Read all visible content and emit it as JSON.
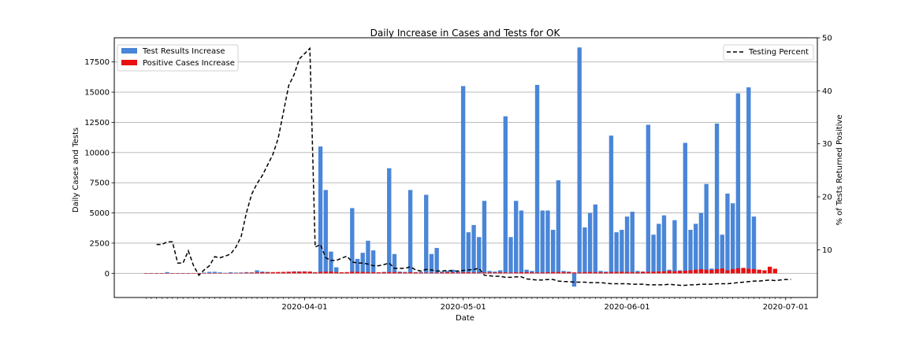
{
  "chart_data": {
    "type": "bar",
    "title": "Daily Increase in Cases and Tests for OK",
    "xlabel": "Date",
    "ylabel": "Daily Cases and Tests",
    "y2label": "% of Tests Returned Positive",
    "x_dates": [
      "2020-03-02",
      "2020-03-03",
      "2020-03-04",
      "2020-03-05",
      "2020-03-06",
      "2020-03-07",
      "2020-03-08",
      "2020-03-09",
      "2020-03-10",
      "2020-03-11",
      "2020-03-12",
      "2020-03-13",
      "2020-03-14",
      "2020-03-15",
      "2020-03-16",
      "2020-03-17",
      "2020-03-18",
      "2020-03-19",
      "2020-03-20",
      "2020-03-21",
      "2020-03-22",
      "2020-03-23",
      "2020-03-24",
      "2020-03-25",
      "2020-03-26",
      "2020-03-27",
      "2020-03-28",
      "2020-03-29",
      "2020-03-30",
      "2020-03-31",
      "2020-04-01",
      "2020-04-02",
      "2020-04-03",
      "2020-04-04",
      "2020-04-05",
      "2020-04-06",
      "2020-04-07",
      "2020-04-08",
      "2020-04-09",
      "2020-04-10",
      "2020-04-11",
      "2020-04-12",
      "2020-04-13",
      "2020-04-14",
      "2020-04-15",
      "2020-04-16",
      "2020-04-17",
      "2020-04-18",
      "2020-04-19",
      "2020-04-20",
      "2020-04-21",
      "2020-04-22",
      "2020-04-23",
      "2020-04-24",
      "2020-04-25",
      "2020-04-26",
      "2020-04-27",
      "2020-04-28",
      "2020-04-29",
      "2020-04-30",
      "2020-05-01",
      "2020-05-02",
      "2020-05-03",
      "2020-05-04",
      "2020-05-05",
      "2020-05-06",
      "2020-05-07",
      "2020-05-08",
      "2020-05-09",
      "2020-05-10",
      "2020-05-11",
      "2020-05-12",
      "2020-05-13",
      "2020-05-14",
      "2020-05-15",
      "2020-05-16",
      "2020-05-17",
      "2020-05-18",
      "2020-05-19",
      "2020-05-20",
      "2020-05-21",
      "2020-05-22",
      "2020-05-23",
      "2020-05-24",
      "2020-05-25",
      "2020-05-26",
      "2020-05-27",
      "2020-05-28",
      "2020-05-29",
      "2020-05-30",
      "2020-05-31",
      "2020-06-01",
      "2020-06-02",
      "2020-06-03",
      "2020-06-04",
      "2020-06-05",
      "2020-06-06",
      "2020-06-07",
      "2020-06-08",
      "2020-06-09",
      "2020-06-10",
      "2020-06-11",
      "2020-06-12",
      "2020-06-13",
      "2020-06-14",
      "2020-06-15",
      "2020-06-16",
      "2020-06-17",
      "2020-06-18",
      "2020-06-19",
      "2020-06-20",
      "2020-06-21",
      "2020-06-22",
      "2020-06-23",
      "2020-06-24",
      "2020-06-25",
      "2020-06-26",
      "2020-06-27",
      "2020-06-28",
      "2020-06-29",
      "2020-06-30",
      "2020-07-01",
      "2020-07-02"
    ],
    "series": [
      {
        "name": "Test Results Increase",
        "type": "bar",
        "axis": "left",
        "color": "#4a86d8",
        "values": [
          0,
          0,
          0,
          0,
          100,
          0,
          0,
          0,
          0,
          20,
          30,
          60,
          120,
          130,
          80,
          40,
          90,
          60,
          70,
          100,
          80,
          250,
          150,
          120,
          90,
          80,
          110,
          130,
          170,
          160,
          170,
          140,
          100,
          10500,
          6900,
          1800,
          500,
          80,
          90,
          5400,
          1200,
          1700,
          2700,
          1900,
          90,
          120,
          8700,
          1600,
          150,
          120,
          6900,
          100,
          120,
          6500,
          1600,
          2100,
          150,
          200,
          300,
          200,
          15500,
          3400,
          4000,
          3000,
          6000,
          200,
          150,
          250,
          13000,
          3000,
          6000,
          5200,
          300,
          200,
          15600,
          5200,
          5200,
          3600,
          7700,
          200,
          150,
          -1100,
          18700,
          3800,
          5000,
          5700,
          200,
          150,
          11400,
          3400,
          3600,
          4700,
          5100,
          200,
          150,
          12300,
          3200,
          4100,
          4800,
          300,
          4400,
          250,
          10800,
          3600,
          4100,
          5000,
          7400,
          400,
          12400,
          3200,
          6600,
          5800,
          14900,
          300,
          15400,
          4700
        ]
      },
      {
        "name": "Positive Cases Increase",
        "type": "bar",
        "axis": "left",
        "color": "#e81010",
        "values": [
          1,
          1,
          2,
          2,
          3,
          5,
          2,
          6,
          5,
          8,
          10,
          15,
          12,
          18,
          20,
          20,
          25,
          30,
          40,
          50,
          60,
          70,
          80,
          90,
          100,
          110,
          120,
          130,
          130,
          140,
          140,
          150,
          80,
          120,
          140,
          150,
          100,
          90,
          100,
          130,
          120,
          110,
          100,
          90,
          80,
          90,
          100,
          110,
          80,
          70,
          90,
          80,
          60,
          50,
          50,
          60,
          70,
          90,
          80,
          60,
          90,
          80,
          70,
          60,
          70,
          80,
          60,
          90,
          70,
          60,
          80,
          90,
          100,
          80,
          70,
          70,
          90,
          100,
          110,
          100,
          90,
          80,
          70,
          100,
          110,
          100,
          90,
          80,
          120,
          110,
          130,
          120,
          100,
          90,
          130,
          120,
          140,
          150,
          170,
          200,
          180,
          190,
          220,
          250,
          300,
          350,
          300,
          280,
          350,
          400,
          250,
          350,
          420,
          450,
          380,
          350,
          300,
          250,
          550,
          380
        ]
      },
      {
        "name": "Testing Percent",
        "type": "line",
        "axis": "right",
        "color": "#000000",
        "x_dates": [
          "2020-03-04",
          "2020-03-05",
          "2020-03-06",
          "2020-03-07",
          "2020-03-08",
          "2020-03-09",
          "2020-03-10",
          "2020-03-11",
          "2020-03-12",
          "2020-03-13",
          "2020-03-14",
          "2020-03-15",
          "2020-03-16",
          "2020-03-17",
          "2020-03-18",
          "2020-03-19",
          "2020-03-20",
          "2020-03-21",
          "2020-03-22",
          "2020-03-23",
          "2020-03-24",
          "2020-03-25",
          "2020-03-26",
          "2020-03-27",
          "2020-03-28",
          "2020-03-29",
          "2020-03-30",
          "2020-03-31",
          "2020-04-01",
          "2020-04-02",
          "2020-04-03",
          "2020-04-04",
          "2020-04-05",
          "2020-04-06",
          "2020-04-07",
          "2020-04-08",
          "2020-04-09",
          "2020-04-10",
          "2020-04-11",
          "2020-04-12",
          "2020-04-13",
          "2020-04-14",
          "2020-04-15",
          "2020-04-16",
          "2020-04-17",
          "2020-04-18",
          "2020-04-19",
          "2020-04-20",
          "2020-04-21",
          "2020-04-22",
          "2020-04-23",
          "2020-04-24",
          "2020-04-25",
          "2020-04-26",
          "2020-04-27",
          "2020-04-28",
          "2020-04-29",
          "2020-04-30",
          "2020-05-01",
          "2020-05-02",
          "2020-05-03",
          "2020-05-04",
          "2020-05-05",
          "2020-05-06",
          "2020-05-07",
          "2020-05-08",
          "2020-05-09",
          "2020-05-10",
          "2020-05-11",
          "2020-05-12",
          "2020-05-13",
          "2020-05-14",
          "2020-05-15",
          "2020-05-16",
          "2020-05-17",
          "2020-05-18",
          "2020-05-19",
          "2020-05-20",
          "2020-05-21",
          "2020-05-22",
          "2020-05-23",
          "2020-05-24",
          "2020-05-25",
          "2020-05-26",
          "2020-05-27",
          "2020-05-28",
          "2020-05-29",
          "2020-05-30",
          "2020-05-31",
          "2020-06-01",
          "2020-06-02",
          "2020-06-03",
          "2020-06-04",
          "2020-06-05",
          "2020-06-06",
          "2020-06-07",
          "2020-06-08",
          "2020-06-09",
          "2020-06-10",
          "2020-06-11",
          "2020-06-12",
          "2020-06-13",
          "2020-06-14",
          "2020-06-15",
          "2020-06-16",
          "2020-06-17",
          "2020-06-18",
          "2020-06-19",
          "2020-06-20",
          "2020-06-21",
          "2020-06-22",
          "2020-06-23",
          "2020-06-24",
          "2020-06-25",
          "2020-06-26",
          "2020-06-27",
          "2020-06-28",
          "2020-06-29",
          "2020-06-30",
          "2020-07-01",
          "2020-07-02"
        ],
        "values": [
          11,
          11,
          11.5,
          11.5,
          7.5,
          7.5,
          9.8,
          7,
          5.2,
          6.2,
          7,
          8.7,
          8.5,
          8.8,
          9.2,
          10.5,
          12.5,
          17,
          20.5,
          22.5,
          24,
          26,
          28,
          31,
          36,
          41,
          43,
          46,
          47,
          48,
          10.5,
          11,
          8.5,
          8,
          8,
          8.4,
          8.8,
          7.7,
          7.5,
          7.5,
          7.3,
          7,
          7,
          7.2,
          7.5,
          6.5,
          6.5,
          6.5,
          6.8,
          6.2,
          6,
          6.3,
          6.2,
          6,
          6,
          6.1,
          6,
          6,
          6.1,
          6.2,
          6.3,
          6.5,
          5.2,
          5.1,
          5,
          5,
          4.8,
          4.8,
          4.9,
          4.9,
          4.5,
          4.4,
          4.3,
          4.3,
          4.4,
          4.4,
          4.1,
          4,
          4,
          3.9,
          3.9,
          3.9,
          3.8,
          3.8,
          3.8,
          3.7,
          3.6,
          3.6,
          3.6,
          3.6,
          3.5,
          3.5,
          3.5,
          3.4,
          3.4,
          3.4,
          3.4,
          3.5,
          3.4,
          3.3,
          3.3,
          3.4,
          3.4,
          3.5,
          3.5,
          3.5,
          3.6,
          3.6,
          3.6,
          3.7,
          3.8,
          3.9,
          4,
          4.1,
          4.1,
          4.2,
          4.3,
          4.2,
          4.3,
          4.4,
          4.4
        ]
      }
    ],
    "y_ticks": [
      0,
      2500,
      5000,
      7500,
      10000,
      12500,
      15000,
      17500
    ],
    "y_tick_labels": [
      "0",
      "2500",
      "5000",
      "7500",
      "10000",
      "12500",
      "15000",
      "17500"
    ],
    "ylim": [
      -2000,
      19500
    ],
    "y2_ticks": [
      10,
      20,
      30,
      40,
      50
    ],
    "y2_tick_labels": [
      "10",
      "20",
      "30",
      "40",
      "50"
    ],
    "y2lim": [
      1,
      50
    ],
    "x_ticks": [
      "2020-04-01",
      "2020-05-01",
      "2020-06-01",
      "2020-07-01"
    ],
    "x_tick_labels": [
      "2020-04-01",
      "2020-05-01",
      "2020-06-01",
      "2020-07-01"
    ],
    "xlim": [
      "2020-02-25",
      "2020-07-07"
    ],
    "grid": "horizontal",
    "legend_left": "top-left",
    "legend_right": "top-right"
  }
}
